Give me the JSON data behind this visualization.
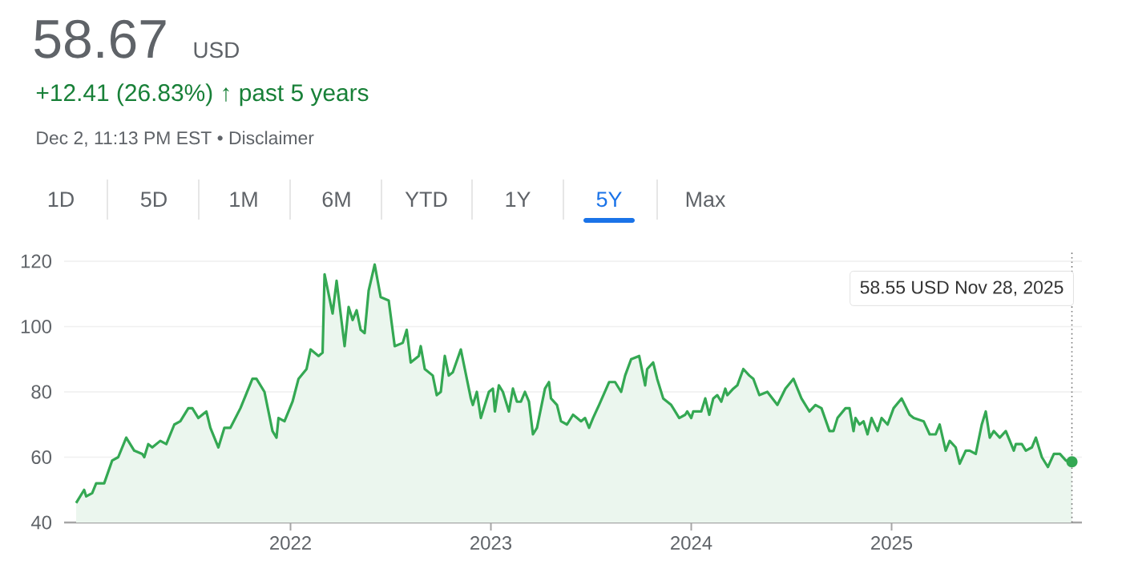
{
  "chart_data": {
    "type": "area",
    "title": "58.67",
    "subtitle": "+12.41 (26.83%) ↑ past 5 years",
    "annotations": [
      "USD",
      "Dec 2, 11:13 PM EST • Disclaimer",
      "1D",
      "5D",
      "1M",
      "6M",
      "YTD",
      "1Y",
      "5Y",
      "Max",
      "58.55 USD  Nov 28, 2025"
    ],
    "x": [
      2020.93,
      2020.97,
      2020.98,
      2021.01,
      2021.03,
      2021.07,
      2021.11,
      2021.14,
      2021.18,
      2021.22,
      2021.26,
      2021.27,
      2021.29,
      2021.31,
      2021.35,
      2021.38,
      2021.42,
      2021.45,
      2021.49,
      2021.51,
      2021.54,
      2021.58,
      2021.6,
      2021.64,
      2021.67,
      2021.7,
      2021.75,
      2021.81,
      2021.83,
      2021.87,
      2021.91,
      2021.93,
      2021.94,
      2021.97,
      2022.01,
      2022.04,
      2022.08,
      2022.1,
      2022.14,
      2022.16,
      2022.17,
      2022.21,
      2022.23,
      2022.26,
      2022.27,
      2022.29,
      2022.31,
      2022.33,
      2022.35,
      2022.37,
      2022.39,
      2022.42,
      2022.45,
      2022.49,
      2022.52,
      2022.56,
      2022.58,
      2022.6,
      2022.64,
      2022.65,
      2022.67,
      2022.71,
      2022.73,
      2022.75,
      2022.77,
      2022.79,
      2022.81,
      2022.85,
      2022.87,
      2022.9,
      2022.91,
      2022.93,
      2022.95,
      2022.97,
      2022.99,
      2023.01,
      2023.02,
      2023.04,
      2023.06,
      2023.09,
      2023.11,
      2023.13,
      2023.15,
      2023.17,
      2023.19,
      2023.21,
      2023.23,
      2023.27,
      2023.29,
      2023.3,
      2023.33,
      2023.35,
      2023.38,
      2023.41,
      2023.43,
      2023.45,
      2023.47,
      2023.49,
      2023.51,
      2023.54,
      2023.59,
      2023.62,
      2023.65,
      2023.67,
      2023.7,
      2023.74,
      2023.77,
      2023.78,
      2023.81,
      2023.83,
      2023.86,
      2023.9,
      2023.94,
      2023.97,
      2023.98,
      2024.0,
      2024.01,
      2024.05,
      2024.07,
      2024.09,
      2024.11,
      2024.13,
      2024.15,
      2024.17,
      2024.18,
      2024.21,
      2024.23,
      2024.26,
      2024.29,
      2024.31,
      2024.34,
      2024.38,
      2024.43,
      2024.47,
      2024.51,
      2024.55,
      2024.59,
      2024.62,
      2024.65,
      2024.69,
      2024.71,
      2024.73,
      2024.77,
      2024.79,
      2024.81,
      2024.82,
      2024.84,
      2024.86,
      2024.88,
      2024.9,
      2024.93,
      2024.95,
      2024.98,
      2025.01,
      2025.05,
      2025.09,
      2025.11,
      2025.16,
      2025.19,
      2025.22,
      2025.24,
      2025.27,
      2025.29,
      2025.32,
      2025.34,
      2025.37,
      2025.39,
      2025.42,
      2025.45,
      2025.47,
      2025.49,
      2025.51,
      2025.54,
      2025.57,
      2025.61,
      2025.62,
      2025.65,
      2025.67,
      2025.7,
      2025.72,
      2025.75,
      2025.78,
      2025.81,
      2025.84,
      2025.87,
      2025.9
    ],
    "series": [
      {
        "color": "#34a853",
        "values": [
          46,
          50,
          48,
          49,
          52,
          52,
          59,
          60,
          66,
          62,
          61,
          60,
          64,
          63,
          65,
          64,
          70,
          71,
          75,
          75,
          72,
          74,
          69,
          63,
          69,
          69,
          75,
          84,
          84,
          80,
          68,
          66,
          72,
          71,
          77,
          84,
          87,
          93,
          91,
          92,
          116,
          104,
          114,
          99,
          94,
          106,
          102,
          105,
          99,
          98,
          111,
          119,
          109,
          108,
          94,
          95,
          99,
          89,
          91,
          94,
          87,
          85,
          79,
          80,
          91,
          85,
          86,
          93,
          87,
          78,
          76,
          80,
          72,
          76,
          80,
          81,
          74,
          82,
          80,
          74,
          81,
          77,
          77,
          80,
          77,
          67,
          69,
          81,
          83,
          78,
          76,
          71,
          70,
          73,
          72,
          71,
          72,
          69,
          72,
          76,
          83,
          83,
          80,
          85,
          90,
          91,
          82,
          87,
          89,
          84,
          78,
          76,
          72,
          73,
          74,
          72,
          74,
          74,
          78,
          73,
          78,
          79,
          77,
          81,
          79,
          81,
          82,
          87,
          85,
          84,
          79,
          80,
          76,
          81,
          84,
          78,
          74,
          76,
          75,
          68,
          68,
          72,
          75,
          75,
          68,
          72,
          70,
          71,
          67,
          72,
          68,
          72,
          70,
          75,
          78,
          73,
          72,
          71,
          67,
          67,
          70,
          62,
          65,
          63,
          58,
          62,
          62,
          61,
          70,
          74,
          66,
          68,
          66,
          68,
          62,
          64,
          64,
          62,
          63,
          66,
          60,
          57,
          61,
          61,
          59,
          58.6
        ]
      }
    ],
    "xlim": [
      2020.87,
      2025.95
    ],
    "ylim": [
      40,
      120
    ],
    "xticks": [
      2022,
      2023,
      2024,
      2025
    ],
    "yticks": [
      40,
      60,
      80,
      100,
      120
    ],
    "grid": "y",
    "marker": "none",
    "ref_lines": [
      {
        "axis": "x",
        "value": 2025.9,
        "line_style": "dotted",
        "color": "#757575"
      }
    ]
  }
}
